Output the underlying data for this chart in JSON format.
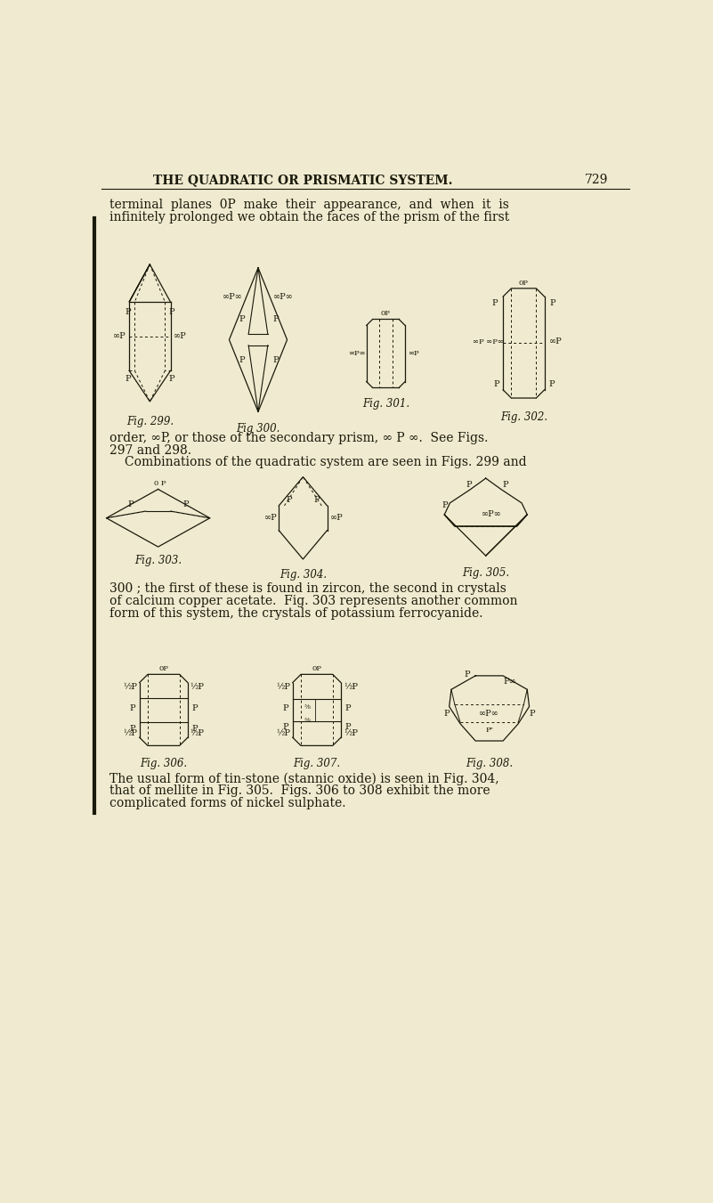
{
  "background_color": "#f0ead0",
  "title": "THE QUADRATIC OR PRISMATIC SYSTEM.",
  "page_number": "729",
  "title_fontsize": 10,
  "body_fontsize": 10,
  "caption_fontsize": 9,
  "line_color": "#1a1a0a",
  "text_color": "#1a1a0a",
  "fig299_caption": "Fig. 299.",
  "fig300_caption": "Fig 300.",
  "fig301_caption": "Fig. 301.",
  "fig302_caption": "Fig. 302.",
  "fig303_caption": "Fig. 303.",
  "fig304_caption": "Fig. 304.",
  "fig305_caption": "Fig. 305.",
  "fig306_caption": "Fig. 306.",
  "fig307_caption": "Fig. 307.",
  "fig308_caption": "Fig. 308."
}
